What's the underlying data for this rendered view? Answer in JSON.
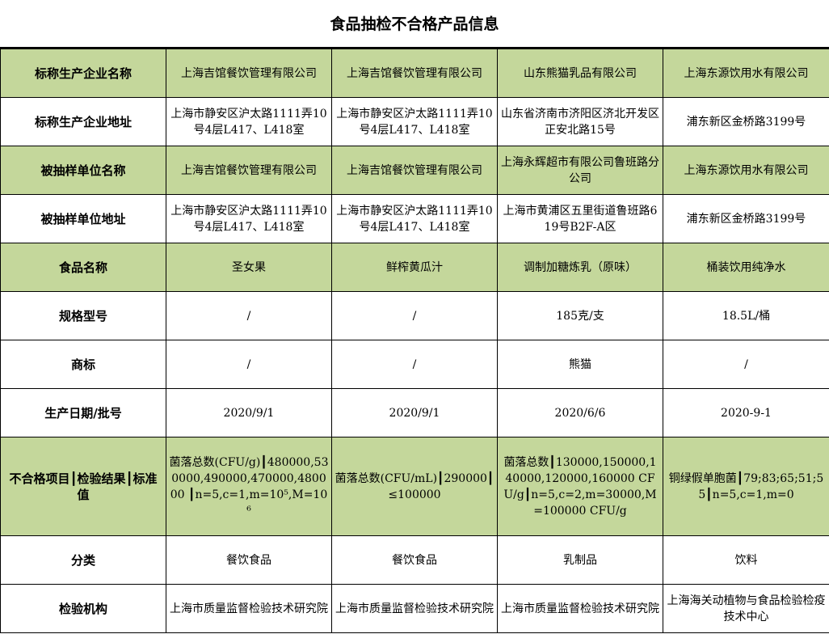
{
  "title": "食品抽检不合格产品信息",
  "colors": {
    "header_green": "#c4d79b",
    "border": "#000000"
  },
  "rows": [
    {
      "label": "标称生产企业名称",
      "green": true,
      "cells": [
        "上海吉馆餐饮管理有限公司",
        "上海吉馆餐饮管理有限公司",
        "山东熊猫乳品有限公司",
        "上海东源饮用水有限公司"
      ]
    },
    {
      "label": "标称生产企业地址",
      "green": false,
      "cells": [
        "上海市静安区沪太路1111弄10号4层L417、L418室",
        "上海市静安区沪太路1111弄10号4层L417、L418室",
        "山东省济南市济阳区济北开发区正安北路15号",
        "浦东新区金桥路3199号"
      ]
    },
    {
      "label": "被抽样单位名称",
      "green": true,
      "cells": [
        "上海吉馆餐饮管理有限公司",
        "上海吉馆餐饮管理有限公司",
        "上海永辉超市有限公司鲁班路分公司",
        "上海东源饮用水有限公司"
      ]
    },
    {
      "label": "被抽样单位地址",
      "green": false,
      "cells": [
        "上海市静安区沪太路1111弄10号4层L417、L418室",
        "上海市静安区沪太路1111弄10号4层L417、L418室",
        "上海市黄浦区五里街道鲁班路619号B2F-A区",
        "浦东新区金桥路3199号"
      ]
    },
    {
      "label": "食品名称",
      "green": true,
      "cells": [
        "圣女果",
        "鲜榨黄瓜汁",
        "调制加糖炼乳（原味）",
        "桶装饮用纯净水"
      ]
    },
    {
      "label": "规格型号",
      "green": false,
      "cells": [
        "/",
        "/",
        "185克/支",
        "18.5L/桶"
      ]
    },
    {
      "label": "商标",
      "green": false,
      "cells": [
        "/",
        "/",
        "熊猫",
        "/"
      ]
    },
    {
      "label": "生产日期/批号",
      "green": false,
      "cells": [
        "2020/9/1",
        "2020/9/1",
        "2020/6/6",
        "2020-9-1"
      ]
    },
    {
      "label": "不合格项目┃检验结果┃标准值",
      "green": true,
      "cells": [
        "菌落总数(CFU/g)┃480000,530000,490000,470000,480000 ┃n=5,c=1,m=10⁵,M=10⁶",
        "菌落总数(CFU/mL)┃290000┃≤100000",
        "菌落总数┃130000,150000,140000,120000,160000 CFU/g┃n=5,c=2,m=30000,M=100000 CFU/g",
        "铜绿假单胞菌┃79;83;65;51;55┃n=5,c=1,m=0"
      ]
    },
    {
      "label": "分类",
      "green": false,
      "cells": [
        "餐饮食品",
        "餐饮食品",
        "乳制品",
        "饮料"
      ]
    },
    {
      "label": "检验机构",
      "green": false,
      "cells": [
        "上海市质量监督检验技术研究院",
        "上海市质量监督检验技术研究院",
        "上海市质量监督检验技术研究院",
        "上海海关动植物与食品检验检疫技术中心"
      ]
    }
  ]
}
